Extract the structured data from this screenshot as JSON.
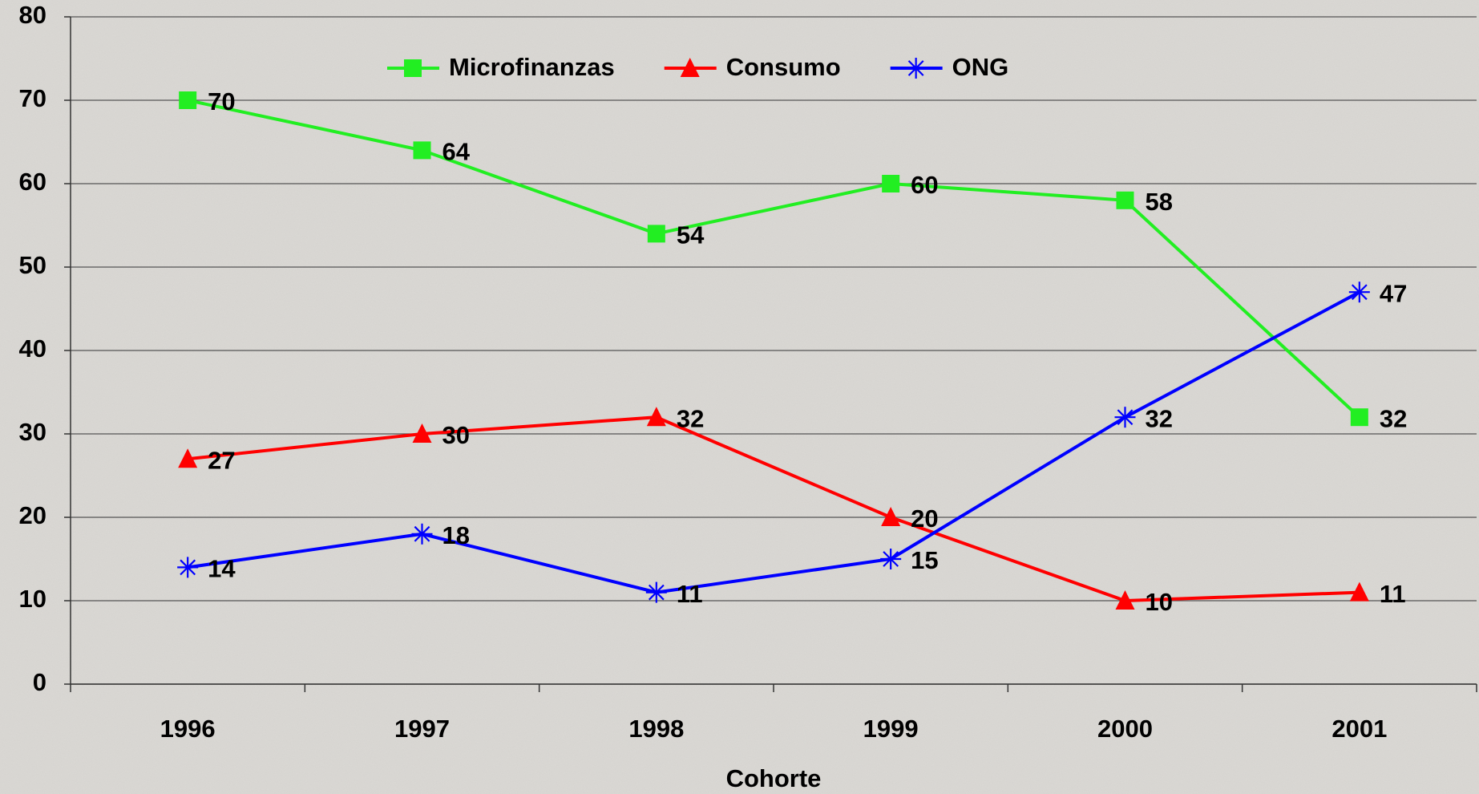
{
  "chart_data": {
    "type": "line",
    "x_label": "Cohorte",
    "categories": [
      "1996",
      "1997",
      "1998",
      "1999",
      "2000",
      "2001"
    ],
    "series": [
      {
        "name": "Microfinanzas",
        "color": "#22ee22",
        "marker": "square",
        "values": [
          70,
          64,
          54,
          60,
          58,
          32
        ]
      },
      {
        "name": "Consumo",
        "color": "#ff0000",
        "marker": "triangle",
        "values": [
          27,
          30,
          32,
          20,
          10,
          11
        ]
      },
      {
        "name": "ONG",
        "color": "#0000ff",
        "marker": "asterisk",
        "values": [
          14,
          18,
          11,
          15,
          32,
          47
        ]
      }
    ],
    "ylim": [
      0,
      80
    ],
    "yticks": [
      0,
      10,
      20,
      30,
      40,
      50,
      60,
      70,
      80
    ],
    "grid": true,
    "legend": "top"
  }
}
